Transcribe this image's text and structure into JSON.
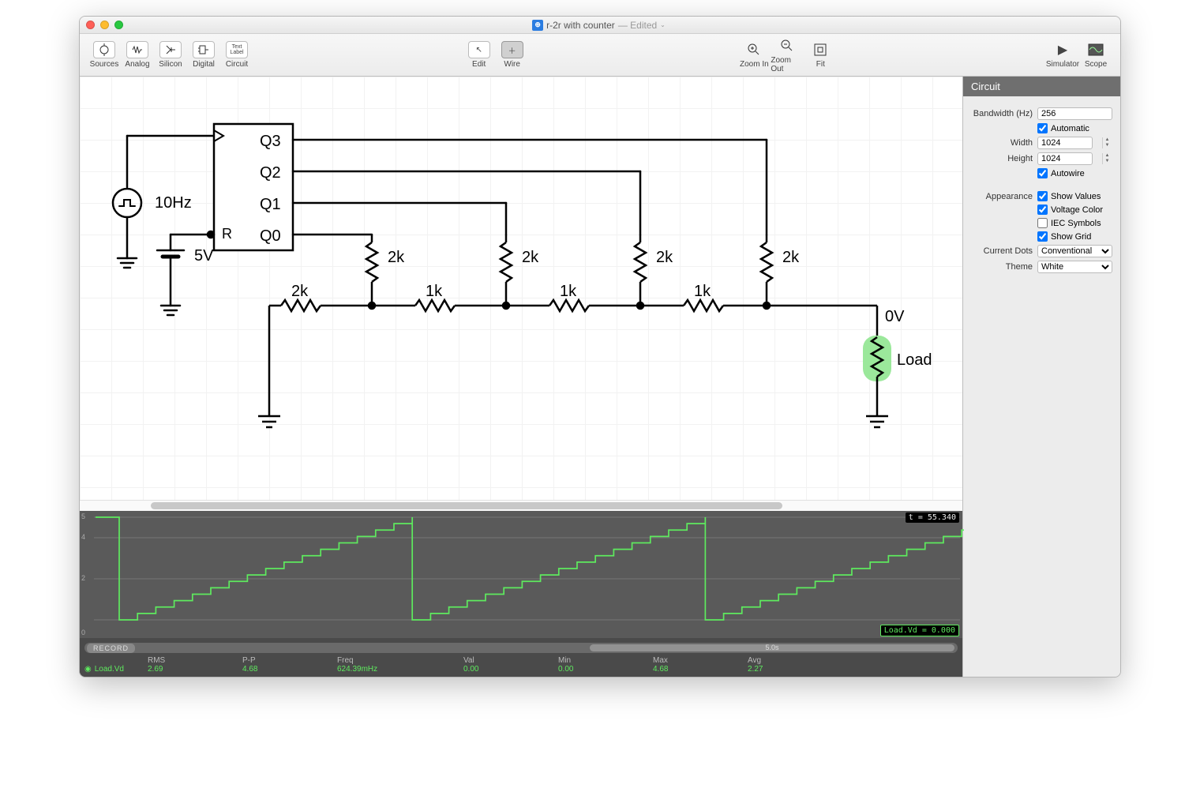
{
  "window": {
    "title": "r-2r with counter",
    "subtitle": "— Edited"
  },
  "toolbar": {
    "left": [
      {
        "id": "sources",
        "label": "Sources"
      },
      {
        "id": "analog",
        "label": "Analog"
      },
      {
        "id": "silicon",
        "label": "Silicon"
      },
      {
        "id": "digital",
        "label": "Digital"
      },
      {
        "id": "circuit",
        "label": "Circuit"
      }
    ],
    "center": [
      {
        "id": "edit",
        "label": "Edit"
      },
      {
        "id": "wire",
        "label": "Wire",
        "selected": true
      }
    ],
    "zoom": [
      {
        "id": "zoomin",
        "label": "Zoom In"
      },
      {
        "id": "zoomout",
        "label": "Zoom Out"
      },
      {
        "id": "fit",
        "label": "Fit"
      }
    ],
    "right": [
      {
        "id": "simulator",
        "label": "Simulator"
      },
      {
        "id": "scope",
        "label": "Scope"
      }
    ]
  },
  "sidebar": {
    "header": "Circuit",
    "bandwidth_label": "Bandwidth (Hz)",
    "bandwidth_value": "256",
    "automatic_label": "Automatic",
    "automatic_checked": true,
    "width_label": "Width",
    "width_value": "1024",
    "height_label": "Height",
    "height_value": "1024",
    "autowire_label": "Autowire",
    "autowire_checked": true,
    "appearance_label": "Appearance",
    "show_values_label": "Show Values",
    "show_values_checked": true,
    "voltage_color_label": "Voltage Color",
    "voltage_color_checked": true,
    "iec_label": "IEC Symbols",
    "iec_checked": false,
    "show_grid_label": "Show Grid",
    "show_grid_checked": true,
    "current_dots_label": "Current Dots",
    "current_dots_value": "Conventional",
    "theme_label": "Theme",
    "theme_value": "White"
  },
  "circuit": {
    "freq_label": "10Hz",
    "supply_label": "5V",
    "counter_pins": {
      "q3": "Q3",
      "q2": "Q2",
      "q1": "Q1",
      "q0": "Q0",
      "r": "R"
    },
    "r2k": "2k",
    "r1k": "1k",
    "out_voltage": "0V",
    "load_label": "Load",
    "load_highlight": "#9be89b"
  },
  "scope": {
    "time_readout": "t = 55.340",
    "value_readout": "Load.Vd = 0.000",
    "y_ticks": [
      "5",
      "4",
      "2",
      "0"
    ],
    "scrollbar_label": "5.0s",
    "record_label": "RECORD",
    "signal_name": "Load.Vd",
    "stats": [
      {
        "label": "RMS",
        "value": "2.69"
      },
      {
        "label": "P-P",
        "value": "4.68"
      },
      {
        "label": "Freq",
        "value": "624.39mHz"
      },
      {
        "label": "Val",
        "value": "0.00"
      },
      {
        "label": "Min",
        "value": "0.00"
      },
      {
        "label": "Max",
        "value": "4.68"
      },
      {
        "label": "Avg",
        "value": "2.27"
      }
    ],
    "trace_color": "#5eea5e",
    "plot_bg": "#5a5a5a"
  }
}
